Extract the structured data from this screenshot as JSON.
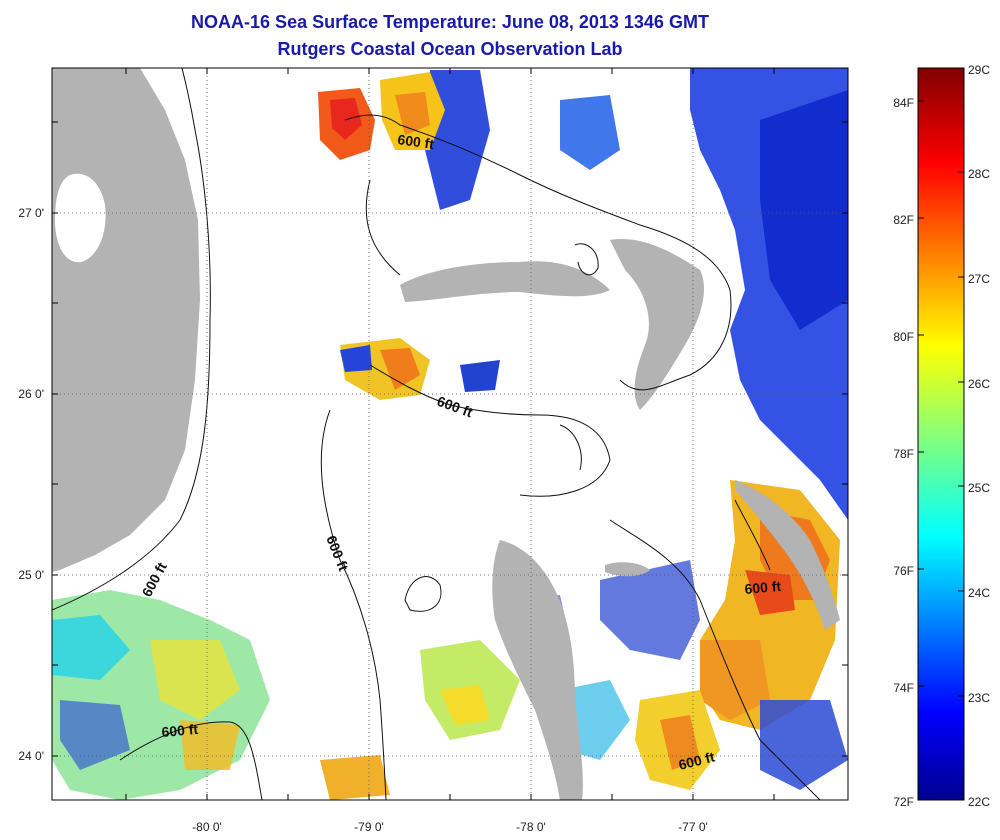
{
  "title": "NOAA-16 Sea Surface Temperature:  June 08, 2013 1346 GMT",
  "subtitle": "Rutgers Coastal Ocean Observation Lab",
  "map": {
    "lon_ticks": [
      "-80 0'",
      "-79 0'",
      "-78 0'",
      "-77 0'"
    ],
    "lat_ticks": [
      "27 0'",
      "26 0'",
      "25 0'",
      "24 0'"
    ],
    "contour_label": "600 ft",
    "land_color": "#b3b3b3",
    "grid": true
  },
  "colorbar": {
    "celsius": [
      "29C",
      "28C",
      "27C",
      "26C",
      "25C",
      "24C",
      "23C",
      "22C"
    ],
    "fahrenheit": [
      "84F",
      "82F",
      "80F",
      "78F",
      "76F",
      "74F",
      "72F"
    ],
    "colormap": "jet",
    "range_c": [
      22,
      29
    ]
  }
}
